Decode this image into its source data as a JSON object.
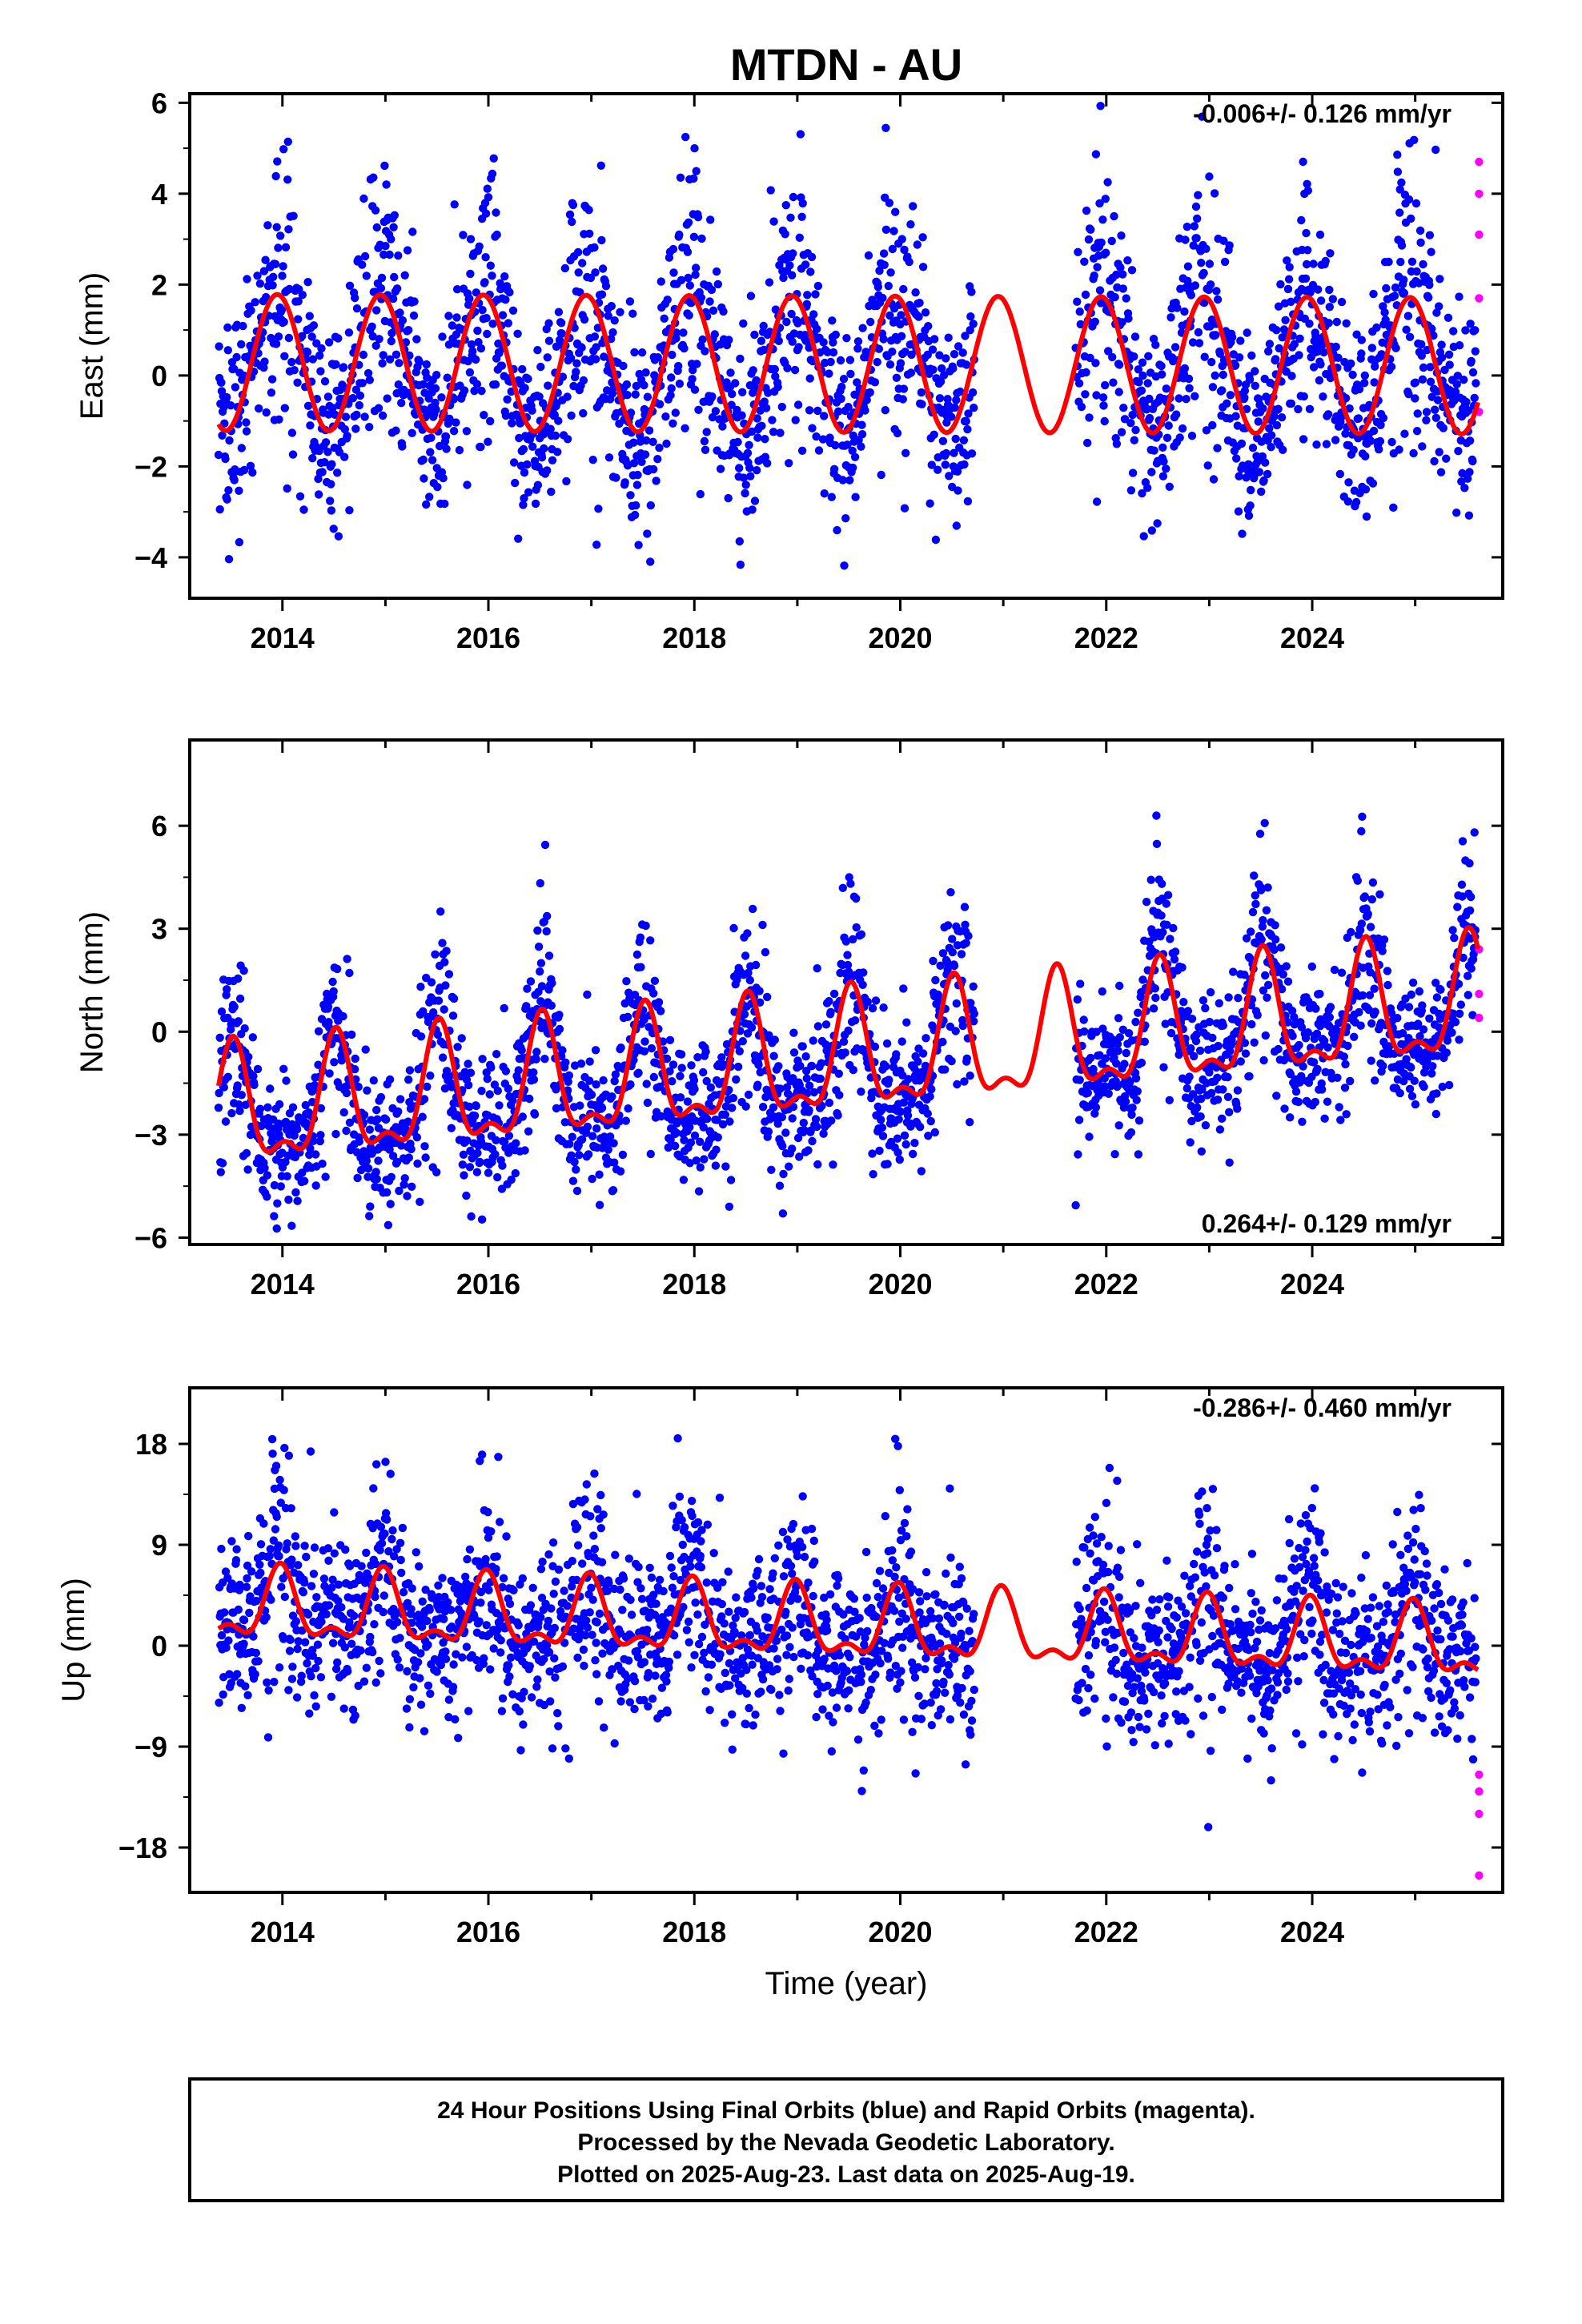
{
  "chart_data": {
    "type": "scatter",
    "title": "MTDN - AU",
    "xlabel": "Time (year)",
    "xlim": [
      2013.1,
      2025.85
    ],
    "x_ticks": [
      2014,
      2016,
      2018,
      2020,
      2022,
      2024
    ],
    "x_tick_labels": [
      "2014",
      "2016",
      "2018",
      "2020",
      "2022",
      "2024"
    ],
    "legend": [
      "24 Hour Positions Using Final Orbits (blue) and Rapid Orbits (magenta).",
      "Processed by the Nevada Geodetic Laboratory.",
      "Plotted on 2025-Aug-23. Last data on 2025-Aug-19."
    ],
    "colors": {
      "final": "#0000ff",
      "rapid": "#ff00ff",
      "model": "#ff0000",
      "frame": "#000000"
    },
    "data_range": [
      2013.38,
      2025.59
    ],
    "gap": [
      2020.72,
      2021.7
    ],
    "panels": [
      {
        "id": "east",
        "ylabel": "East (mm)",
        "ylim": [
          -4.9,
          6.2
        ],
        "y_ticks": [
          -4,
          -2,
          0,
          2,
          4,
          6
        ],
        "y_tick_labels": [
          "−4",
          "−2",
          "0",
          "2",
          "4",
          "6"
        ],
        "rate": "-0.006+/- 0.126 mm/yr",
        "rate_position": "top-right",
        "model": {
          "offset": 0.25,
          "trend": -0.006,
          "annual_amp": 1.5,
          "annual_peak": 0.95,
          "semi_amp": 0.0,
          "semi_peak": 0.0
        },
        "noise_sd": 1.05,
        "seasonal_noise": 0.7,
        "rapid_values": [
          4.7,
          4.0,
          3.1,
          1.7,
          -0.8
        ]
      },
      {
        "id": "north",
        "ylabel": "North (mm)",
        "ylim": [
          -6.2,
          8.5
        ],
        "y_ticks": [
          -6,
          -3,
          0,
          3,
          6
        ],
        "y_tick_labels": [
          "−6",
          "−3",
          "0",
          "3",
          "6"
        ],
        "rate": "0.264+/- 0.129 mm/yr",
        "rate_position": "bottom-right",
        "model": {
          "offset": -0.85,
          "trend": 0.264,
          "annual_amp": 1.6,
          "annual_peak": 0.52,
          "semi_amp": 0.7,
          "semi_peak": 0.52
        },
        "noise_sd": 1.0,
        "seasonal_noise": 0.6,
        "rapid_values": [
          2.4,
          1.1,
          0.4
        ]
      },
      {
        "id": "up",
        "ylabel": "Up (mm)",
        "ylim": [
          -22,
          23
        ],
        "y_ticks": [
          -18,
          -9,
          0,
          9,
          18
        ],
        "y_tick_labels": [
          "−18",
          "−9",
          "0",
          "9",
          "18"
        ],
        "rate": "-0.286+/- 0.460 mm/yr",
        "rate_position": "top-right",
        "model": {
          "offset": 1.6,
          "trend": -0.286,
          "annual_amp": 2.8,
          "annual_peak": 0.98,
          "semi_amp": 1.4,
          "semi_peak": 0.48
        },
        "noise_sd": 3.6,
        "seasonal_noise": 1.8,
        "rapid_values": [
          -11.5,
          -13.0,
          -15.0,
          -20.5
        ]
      }
    ]
  }
}
